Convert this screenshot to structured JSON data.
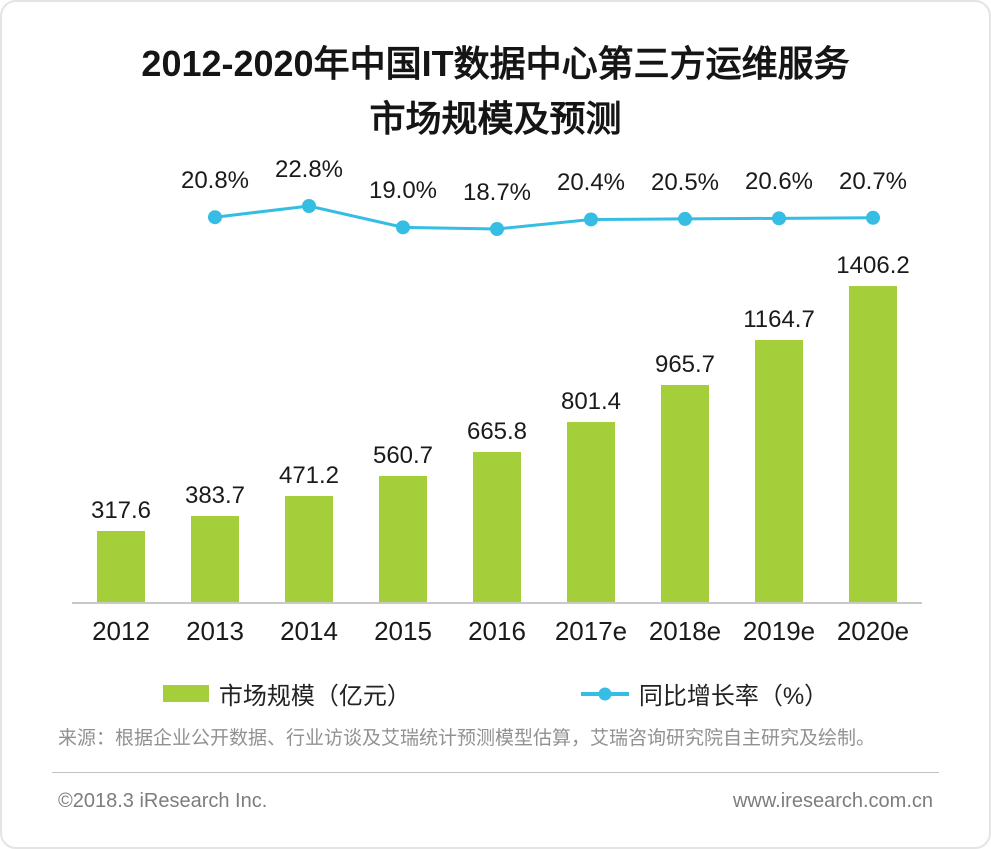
{
  "title": {
    "line1": "2012-2020年中国IT数据中心第三方运维服务",
    "line2": "市场规模及预测"
  },
  "chart_data": {
    "type": "bar",
    "categories": [
      "2012",
      "2013",
      "2014",
      "2015",
      "2016",
      "2017e",
      "2018e",
      "2019e",
      "2020e"
    ],
    "series": [
      {
        "name": "市场规模（亿元）",
        "type": "bar",
        "color": "#a5ce3b",
        "values": [
          317.6,
          383.7,
          471.2,
          560.7,
          665.8,
          801.4,
          965.7,
          1164.7,
          1406.2
        ]
      },
      {
        "name": "同比增长率（%）",
        "type": "line",
        "color": "#35bde4",
        "x_categories": [
          "2013",
          "2014",
          "2015",
          "2016",
          "2017e",
          "2018e",
          "2019e",
          "2020e"
        ],
        "values": [
          20.8,
          22.8,
          19.0,
          18.7,
          20.4,
          20.5,
          20.6,
          20.7
        ]
      }
    ],
    "value_labels": [
      "317.6",
      "383.7",
      "471.2",
      "560.7",
      "665.8",
      "801.4",
      "965.7",
      "1164.7",
      "1406.2"
    ],
    "growth_labels": [
      "20.8%",
      "22.8%",
      "19.0%",
      "18.7%",
      "20.4%",
      "20.5%",
      "20.6%",
      "20.7%"
    ],
    "ylabel": "",
    "xlabel": "",
    "grid": false,
    "legend_position": "bottom"
  },
  "legend": {
    "bar_label": "市场规模（亿元）",
    "line_label": "同比增长率（%）"
  },
  "source": "来源：根据企业公开数据、行业访谈及艾瑞统计预测模型估算，艾瑞咨询研究院自主研究及绘制。",
  "footer": {
    "left": "©2018.3 iResearch Inc.",
    "right": "www.iresearch.com.cn"
  }
}
